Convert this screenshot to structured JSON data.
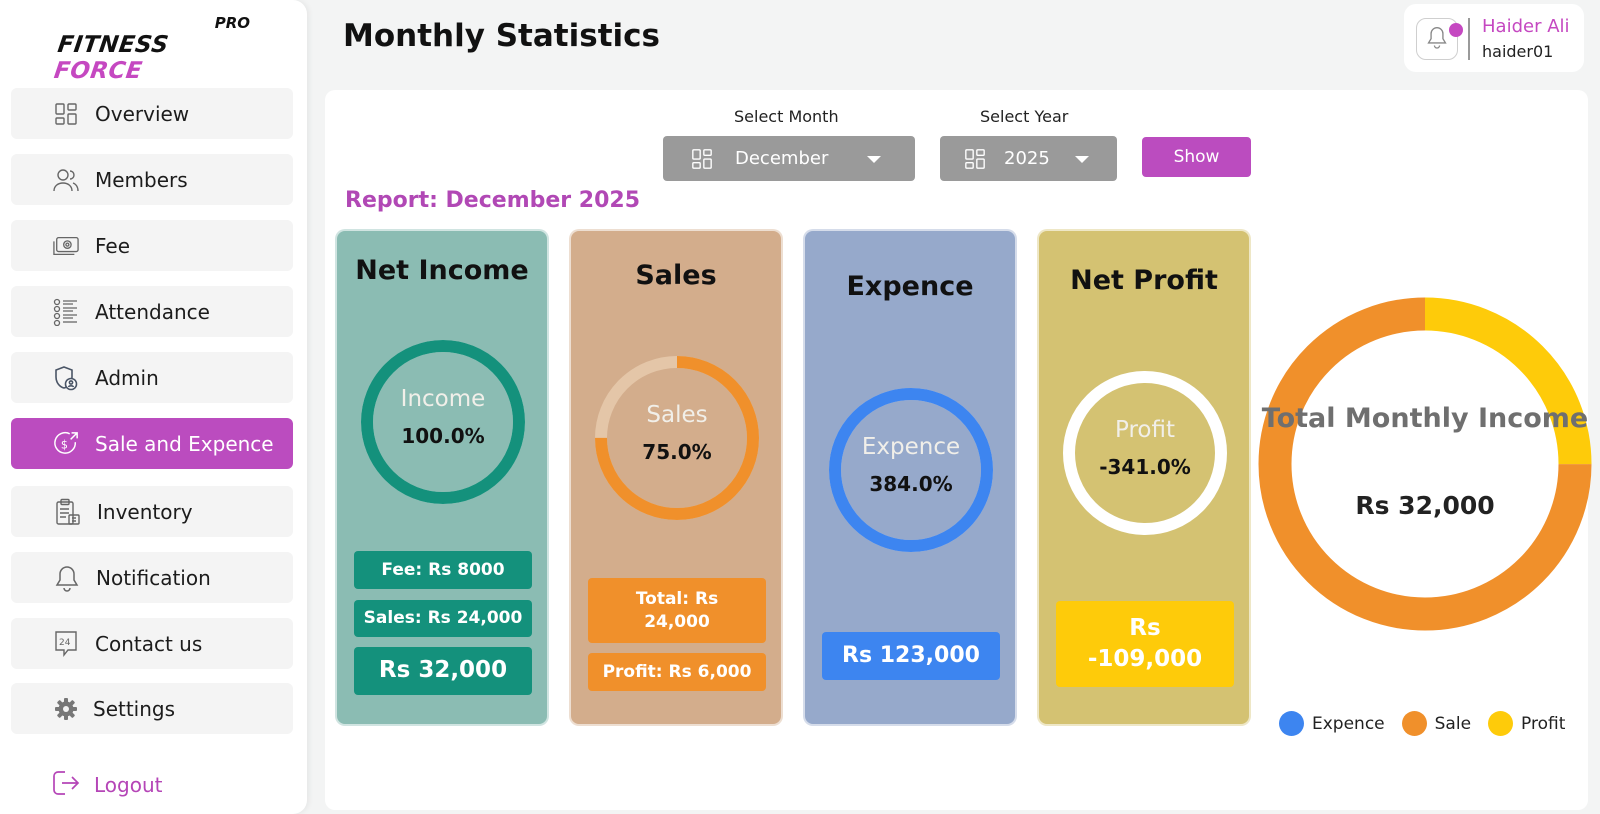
{
  "app": {
    "logo_pro": "PRO",
    "logo_fitness": "FITNESS",
    "logo_force": "FORCE",
    "brand_color": "#c548c1"
  },
  "sidebar": {
    "items": [
      {
        "label": "Overview",
        "icon": "grid-icon"
      },
      {
        "label": "Members",
        "icon": "users-icon"
      },
      {
        "label": "Fee",
        "icon": "cash-icon"
      },
      {
        "label": "Attendance",
        "icon": "checklist-icon"
      },
      {
        "label": "Admin",
        "icon": "shield-user-icon"
      },
      {
        "label": "Sale and Expence",
        "icon": "dollar-exchange-icon",
        "active": true
      },
      {
        "label": "Inventory",
        "icon": "clipboard-icon"
      },
      {
        "label": "Notification",
        "icon": "bell-icon"
      },
      {
        "label": "Contact us",
        "icon": "support-24-icon"
      },
      {
        "label": "Settings",
        "icon": "gear-icon"
      }
    ],
    "logout_label": "Logout"
  },
  "header": {
    "title": "Monthly Statistics",
    "user_name": "Haider Ali",
    "user_handle": "haider01"
  },
  "filters": {
    "month_label": "Select Month",
    "month_value": "December",
    "year_label": "Select Year",
    "year_value": "2025",
    "show_label": "Show"
  },
  "report": {
    "title": "Report: December 2025",
    "net_income": {
      "title": "Net Income",
      "ring_label": "Income",
      "ring_value": "100.0%",
      "ring_fraction": 1.0,
      "fee": "Fee: Rs 8000",
      "sales": "Sales: Rs 24,000",
      "total": "Rs 32,000"
    },
    "sales": {
      "title": "Sales",
      "ring_label": "Sales",
      "ring_value": "75.0%",
      "ring_fraction": 0.75,
      "total": "Total: Rs 24,000",
      "profit": "Profit: Rs 6,000"
    },
    "expence": {
      "title": "Expence",
      "ring_label": "Expence",
      "ring_value": "384.0%",
      "ring_fraction": 1.0,
      "total": "Rs 123,000"
    },
    "net_profit": {
      "title": "Net Profit",
      "ring_label": "Profit",
      "ring_value": "-341.0%",
      "ring_fraction": 0,
      "total": "Rs -109,000"
    }
  },
  "chart_data": {
    "type": "pie",
    "title": "Total Monthly Income",
    "center_value": "Rs 32,000",
    "categories": [
      "Expence",
      "Sale",
      "Profit"
    ],
    "values": [
      0,
      24000,
      8000
    ],
    "colors": [
      "#3d85f0",
      "#f0902b",
      "#fecb0a"
    ]
  },
  "colors": {
    "income_card": "#8bbcb3",
    "income_accent": "#14917c",
    "sales_card": "#d3ad8c",
    "sales_accent": "#f0902b",
    "expence_card": "#96a9cb",
    "expence_accent": "#3d85f0",
    "profit_card": "#d4c272",
    "profit_accent": "#fecb0a"
  }
}
